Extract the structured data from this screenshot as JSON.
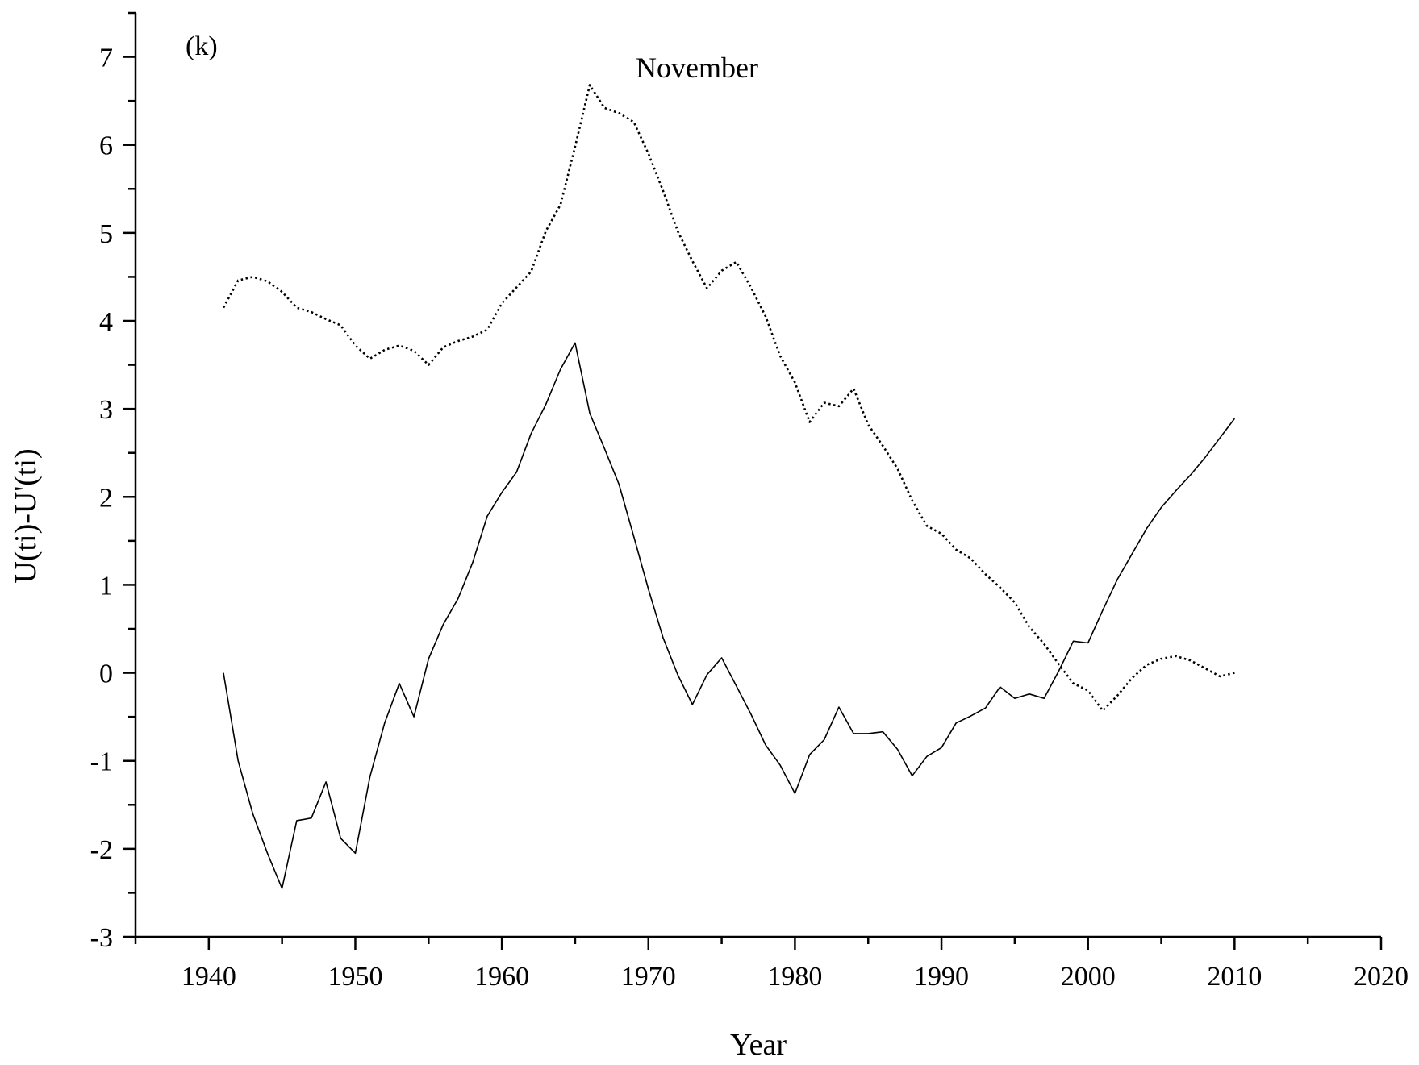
{
  "chart_data": {
    "type": "line",
    "panel_label": "(k)",
    "title": "November",
    "xlabel": "Year",
    "ylabel": "U(ti)-U'(ti)",
    "xlim": [
      1935,
      2020
    ],
    "ylim": [
      -3,
      7.5
    ],
    "xticks": [
      1940,
      1950,
      1960,
      1970,
      1980,
      1990,
      2000,
      2010,
      2020
    ],
    "yticks": [
      -3,
      -2,
      -1,
      0,
      1,
      2,
      3,
      4,
      5,
      6,
      7
    ],
    "xtick_labels": [
      "1940",
      "1950",
      "1960",
      "1970",
      "1980",
      "1990",
      "2000",
      "2010",
      "2020"
    ],
    "ytick_labels": [
      "-3",
      "-2",
      "-1",
      "0",
      "1",
      "2",
      "3",
      "4",
      "5",
      "6",
      "7"
    ],
    "grid": false,
    "legend": "none",
    "series": [
      {
        "style": "solid",
        "color": "#000000",
        "x": [
          1941,
          1942,
          1943,
          1944,
          1945,
          1946,
          1947,
          1948,
          1949,
          1950,
          1951,
          1952,
          1953,
          1954,
          1955,
          1956,
          1957,
          1958,
          1959,
          1960,
          1961,
          1962,
          1963,
          1964,
          1965,
          1966,
          1967,
          1968,
          1969,
          1970,
          1971,
          1972,
          1973,
          1974,
          1975,
          1976,
          1977,
          1978,
          1979,
          1980,
          1981,
          1982,
          1983,
          1984,
          1985,
          1986,
          1987,
          1988,
          1989,
          1990,
          1991,
          1992,
          1993,
          1994,
          1995,
          1996,
          1997,
          1998,
          1999,
          2000,
          2001,
          2002,
          2003,
          2004,
          2005,
          2006,
          2007,
          2008,
          2009,
          2010
        ],
        "y": [
          0.0,
          -1.0,
          -1.6,
          -2.05,
          -2.45,
          -1.68,
          -1.65,
          -1.24,
          -1.88,
          -2.05,
          -1.18,
          -0.57,
          -0.12,
          -0.5,
          0.16,
          0.55,
          0.84,
          1.25,
          1.78,
          2.05,
          2.28,
          2.72,
          3.05,
          3.45,
          3.75,
          2.95,
          2.55,
          2.14,
          1.55,
          0.95,
          0.4,
          -0.02,
          -0.36,
          -0.02,
          0.17,
          -0.15,
          -0.47,
          -0.82,
          -1.05,
          -1.37,
          -0.93,
          -0.76,
          -0.39,
          -0.69,
          -0.69,
          -0.67,
          -0.87,
          -1.17,
          -0.95,
          -0.85,
          -0.57,
          -0.49,
          -0.4,
          -0.16,
          -0.29,
          -0.24,
          -0.29,
          0.02,
          0.36,
          0.34,
          0.71,
          1.06,
          1.35,
          1.64,
          1.88,
          2.07,
          2.25,
          2.45,
          2.67,
          2.89
        ]
      },
      {
        "style": "dotted",
        "color": "#000000",
        "x": [
          1941,
          1942,
          1943,
          1944,
          1945,
          1946,
          1947,
          1948,
          1949,
          1950,
          1951,
          1952,
          1953,
          1954,
          1955,
          1956,
          1957,
          1958,
          1959,
          1960,
          1961,
          1962,
          1963,
          1964,
          1965,
          1966,
          1967,
          1968,
          1969,
          1970,
          1971,
          1972,
          1973,
          1974,
          1975,
          1976,
          1977,
          1978,
          1979,
          1980,
          1981,
          1982,
          1983,
          1984,
          1985,
          1986,
          1987,
          1988,
          1989,
          1990,
          1991,
          1992,
          1993,
          1994,
          1995,
          1996,
          1997,
          1998,
          1999,
          2000,
          2001,
          2002,
          2003,
          2004,
          2005,
          2006,
          2007,
          2008,
          2009,
          2010
        ],
        "y": [
          4.15,
          4.46,
          4.5,
          4.45,
          4.33,
          4.15,
          4.1,
          4.02,
          3.95,
          3.72,
          3.57,
          3.67,
          3.72,
          3.66,
          3.5,
          3.7,
          3.77,
          3.82,
          3.9,
          4.2,
          4.38,
          4.56,
          5.02,
          5.32,
          5.98,
          6.68,
          6.42,
          6.36,
          6.26,
          5.9,
          5.48,
          5.02,
          4.68,
          4.37,
          4.57,
          4.67,
          4.38,
          4.05,
          3.6,
          3.3,
          2.85,
          3.07,
          3.03,
          3.23,
          2.82,
          2.58,
          2.32,
          1.96,
          1.67,
          1.58,
          1.4,
          1.3,
          1.12,
          0.97,
          0.8,
          0.52,
          0.33,
          0.1,
          -0.12,
          -0.2,
          -0.43,
          -0.26,
          -0.06,
          0.09,
          0.16,
          0.19,
          0.14,
          0.05,
          -0.04,
          0.0
        ]
      }
    ]
  }
}
